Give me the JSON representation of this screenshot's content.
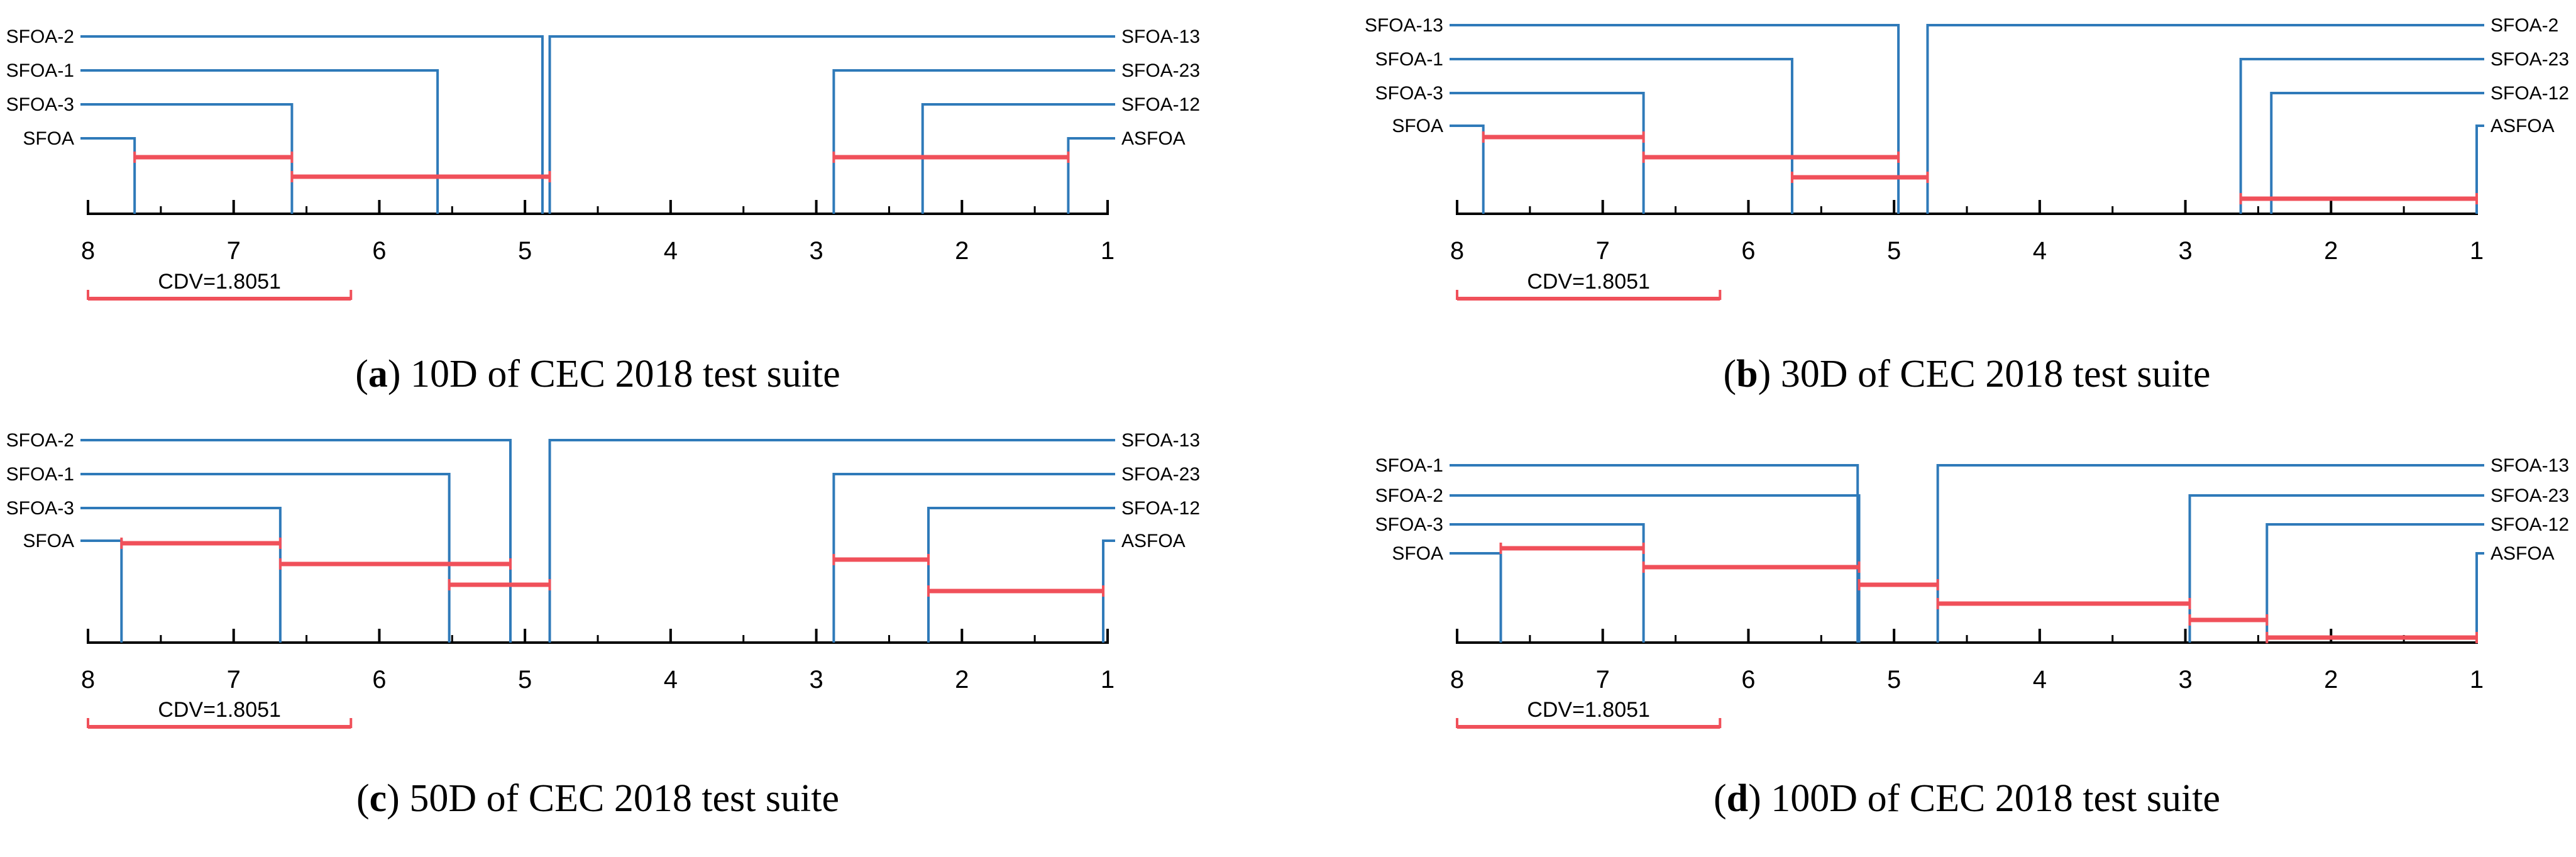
{
  "colors": {
    "connector": "#2f7ab9",
    "cd_bar": "#f0505a",
    "axis": "#000000",
    "text": "#000000"
  },
  "chart_data": [
    {
      "type": "cd_diagram",
      "panel": "a",
      "caption_letter": "a",
      "caption_text": " 10D of CEC 2018 test suite",
      "axis_range": [
        8,
        1
      ],
      "ticks": [
        "8",
        "7",
        "6",
        "5",
        "4",
        "3",
        "2",
        "1"
      ],
      "cdv_label": "CDV=1.8051",
      "cd_value": 1.8051,
      "left_methods": [
        {
          "name": "SFOA-2",
          "rank": 4.88
        },
        {
          "name": "SFOA-1",
          "rank": 5.6
        },
        {
          "name": "SFOA-3",
          "rank": 6.6
        },
        {
          "name": "SFOA",
          "rank": 7.68
        }
      ],
      "right_methods": [
        {
          "name": "SFOA-13",
          "rank": 4.83
        },
        {
          "name": "SFOA-23",
          "rank": 2.88
        },
        {
          "name": "SFOA-12",
          "rank": 2.27
        },
        {
          "name": "ASFOA",
          "rank": 1.27
        }
      ],
      "cliques": [
        [
          7.68,
          6.6
        ],
        [
          6.6,
          4.83
        ],
        [
          2.88,
          1.27
        ]
      ]
    },
    {
      "type": "cd_diagram",
      "panel": "b",
      "caption_letter": "b",
      "caption_text": " 30D of CEC 2018 test suite",
      "axis_range": [
        8,
        1
      ],
      "ticks": [
        "8",
        "7",
        "6",
        "5",
        "4",
        "3",
        "2",
        "1"
      ],
      "cdv_label": "CDV=1.8051",
      "cd_value": 1.8051,
      "left_methods": [
        {
          "name": "SFOA-13",
          "rank": 4.97
        },
        {
          "name": "SFOA-1",
          "rank": 5.7
        },
        {
          "name": "SFOA-3",
          "rank": 6.72
        },
        {
          "name": "SFOA",
          "rank": 7.82
        }
      ],
      "right_methods": [
        {
          "name": "SFOA-2",
          "rank": 4.77
        },
        {
          "name": "SFOA-23",
          "rank": 2.62
        },
        {
          "name": "SFOA-12",
          "rank": 2.41
        },
        {
          "name": "ASFOA",
          "rank": 1.0
        }
      ],
      "cliques": [
        [
          7.82,
          6.72
        ],
        [
          6.72,
          4.97
        ],
        [
          5.7,
          4.77
        ],
        [
          2.62,
          1.0
        ]
      ]
    },
    {
      "type": "cd_diagram",
      "panel": "c",
      "caption_letter": "c",
      "caption_text": " 50D of CEC 2018 test suite",
      "axis_range": [
        8,
        1
      ],
      "ticks": [
        "8",
        "7",
        "6",
        "5",
        "4",
        "3",
        "2",
        "1"
      ],
      "cdv_label": "CDV=1.8051",
      "cd_value": 1.8051,
      "left_methods": [
        {
          "name": "SFOA-2",
          "rank": 5.1
        },
        {
          "name": "SFOA-1",
          "rank": 5.52
        },
        {
          "name": "SFOA-3",
          "rank": 6.68
        },
        {
          "name": "SFOA",
          "rank": 7.77
        }
      ],
      "right_methods": [
        {
          "name": "SFOA-13",
          "rank": 4.83
        },
        {
          "name": "SFOA-23",
          "rank": 2.88
        },
        {
          "name": "SFOA-12",
          "rank": 2.23
        },
        {
          "name": "ASFOA",
          "rank": 1.03
        }
      ],
      "cliques": [
        [
          7.77,
          6.68
        ],
        [
          6.68,
          5.1
        ],
        [
          5.52,
          4.83
        ],
        [
          2.88,
          2.23
        ],
        [
          2.23,
          1.03
        ]
      ]
    },
    {
      "type": "cd_diagram",
      "panel": "d",
      "caption_letter": "d",
      "caption_text": " 100D of CEC 2018 test suite",
      "axis_range": [
        8,
        1
      ],
      "ticks": [
        "8",
        "7",
        "6",
        "5",
        "4",
        "3",
        "2",
        "1"
      ],
      "cdv_label": "CDV=1.8051",
      "cd_value": 1.8051,
      "left_methods": [
        {
          "name": "SFOA-1",
          "rank": 5.25
        },
        {
          "name": "SFOA-2",
          "rank": 5.24
        },
        {
          "name": "SFOA-3",
          "rank": 6.72
        },
        {
          "name": "SFOA",
          "rank": 7.7
        }
      ],
      "right_methods": [
        {
          "name": "SFOA-13",
          "rank": 4.7
        },
        {
          "name": "SFOA-23",
          "rank": 2.97
        },
        {
          "name": "SFOA-12",
          "rank": 2.44
        },
        {
          "name": "ASFOA",
          "rank": 1.0
        }
      ],
      "cliques": [
        [
          7.7,
          6.72
        ],
        [
          6.72,
          5.24
        ],
        [
          5.24,
          4.7
        ],
        [
          4.7,
          2.97
        ],
        [
          2.97,
          2.44
        ],
        [
          2.44,
          1.0
        ]
      ]
    }
  ]
}
